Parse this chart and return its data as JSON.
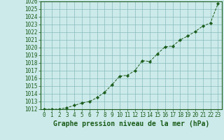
{
  "x": [
    0,
    1,
    2,
    3,
    4,
    5,
    6,
    7,
    8,
    9,
    10,
    11,
    12,
    13,
    14,
    15,
    16,
    17,
    18,
    19,
    20,
    21,
    22,
    23
  ],
  "y": [
    1012.0,
    1012.0,
    1012.0,
    1012.2,
    1012.5,
    1012.8,
    1013.0,
    1013.5,
    1014.2,
    1015.2,
    1016.3,
    1016.4,
    1017.0,
    1018.3,
    1018.2,
    1019.2,
    1020.1,
    1020.2,
    1021.0,
    1021.5,
    1022.1,
    1022.8,
    1023.2,
    1025.7
  ],
  "line_color": "#1a5c1a",
  "marker_color": "#1a5c1a",
  "bg_plot": "#cceaea",
  "bg_fig": "#cceaea",
  "grid_color": "#88bbbb",
  "title": "Graphe pression niveau de la mer (hPa)",
  "title_color": "#1a5c1a",
  "ylabel_min": 1012,
  "ylabel_max": 1026,
  "xlabel_min": 0,
  "xlabel_max": 23,
  "title_fontsize": 7,
  "tick_fontsize": 5.5
}
